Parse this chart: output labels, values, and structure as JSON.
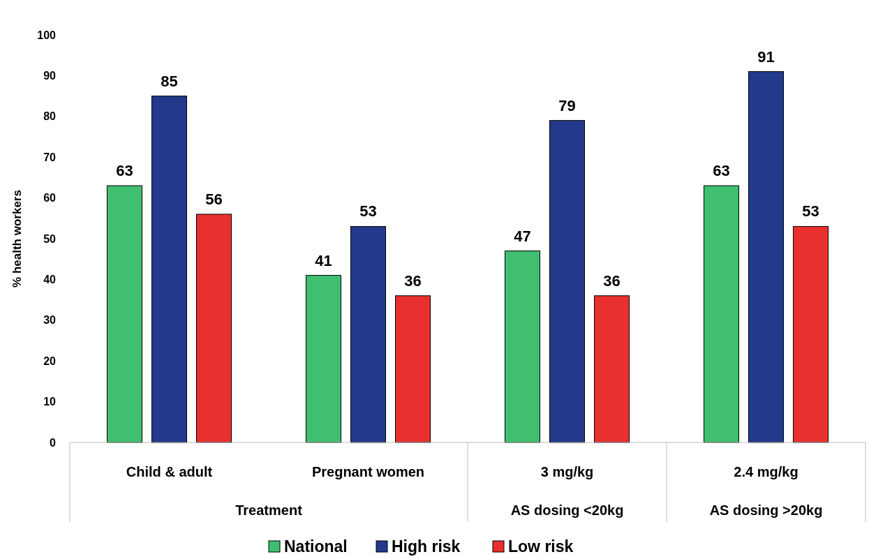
{
  "chart_data": {
    "type": "bar",
    "ylabel": "% health workers",
    "categories": [
      "Child & adult",
      "Pregnant women",
      "3 mg/kg",
      "2.4 mg/kg"
    ],
    "annotations": [
      "Treatment",
      "AS dosing <20kg",
      "AS dosing >20kg"
    ],
    "series": [
      {
        "name": "National",
        "color": "#3fbf6f",
        "values": [
          63,
          41,
          47,
          63
        ]
      },
      {
        "name": "High risk",
        "color": "#233a8c",
        "values": [
          85,
          53,
          79,
          91
        ]
      },
      {
        "name": "Low risk",
        "color": "#e8312e",
        "values": [
          56,
          36,
          36,
          53
        ]
      }
    ],
    "ylim": [
      0,
      100
    ],
    "yticks": [
      0,
      10,
      20,
      30,
      40,
      50,
      60,
      70,
      80,
      90,
      100
    ],
    "data_labels": true,
    "legend": "bottom",
    "grid": false
  }
}
